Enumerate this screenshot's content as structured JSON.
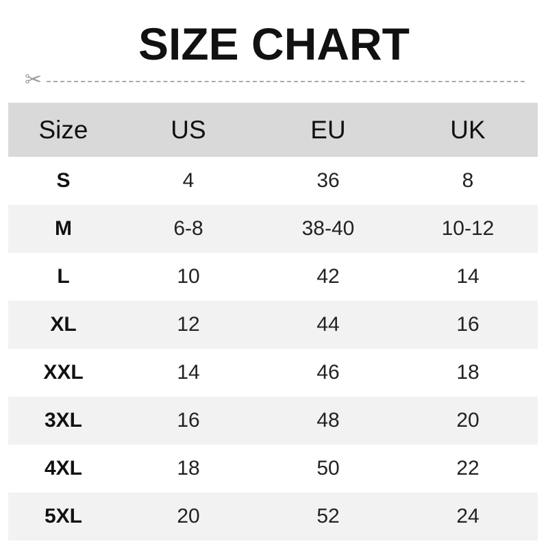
{
  "title": "SIZE CHART",
  "colors": {
    "header_bg": "#d9d9d9",
    "alt_row_bg": "#f2f2f2",
    "cut_line": "#aaaaaa"
  },
  "icons": {
    "cut": "scissors-icon"
  },
  "chart_data": {
    "type": "table",
    "title": "SIZE CHART",
    "columns": [
      "Size",
      "US",
      "EU",
      "UK"
    ],
    "rows": [
      [
        "S",
        "4",
        "36",
        "8"
      ],
      [
        "M",
        "6-8",
        "38-40",
        "10-12"
      ],
      [
        "L",
        "10",
        "42",
        "14"
      ],
      [
        "XL",
        "12",
        "44",
        "16"
      ],
      [
        "XXL",
        "14",
        "46",
        "18"
      ],
      [
        "3XL",
        "16",
        "48",
        "20"
      ],
      [
        "4XL",
        "18",
        "50",
        "22"
      ],
      [
        "5XL",
        "20",
        "52",
        "24"
      ]
    ]
  }
}
